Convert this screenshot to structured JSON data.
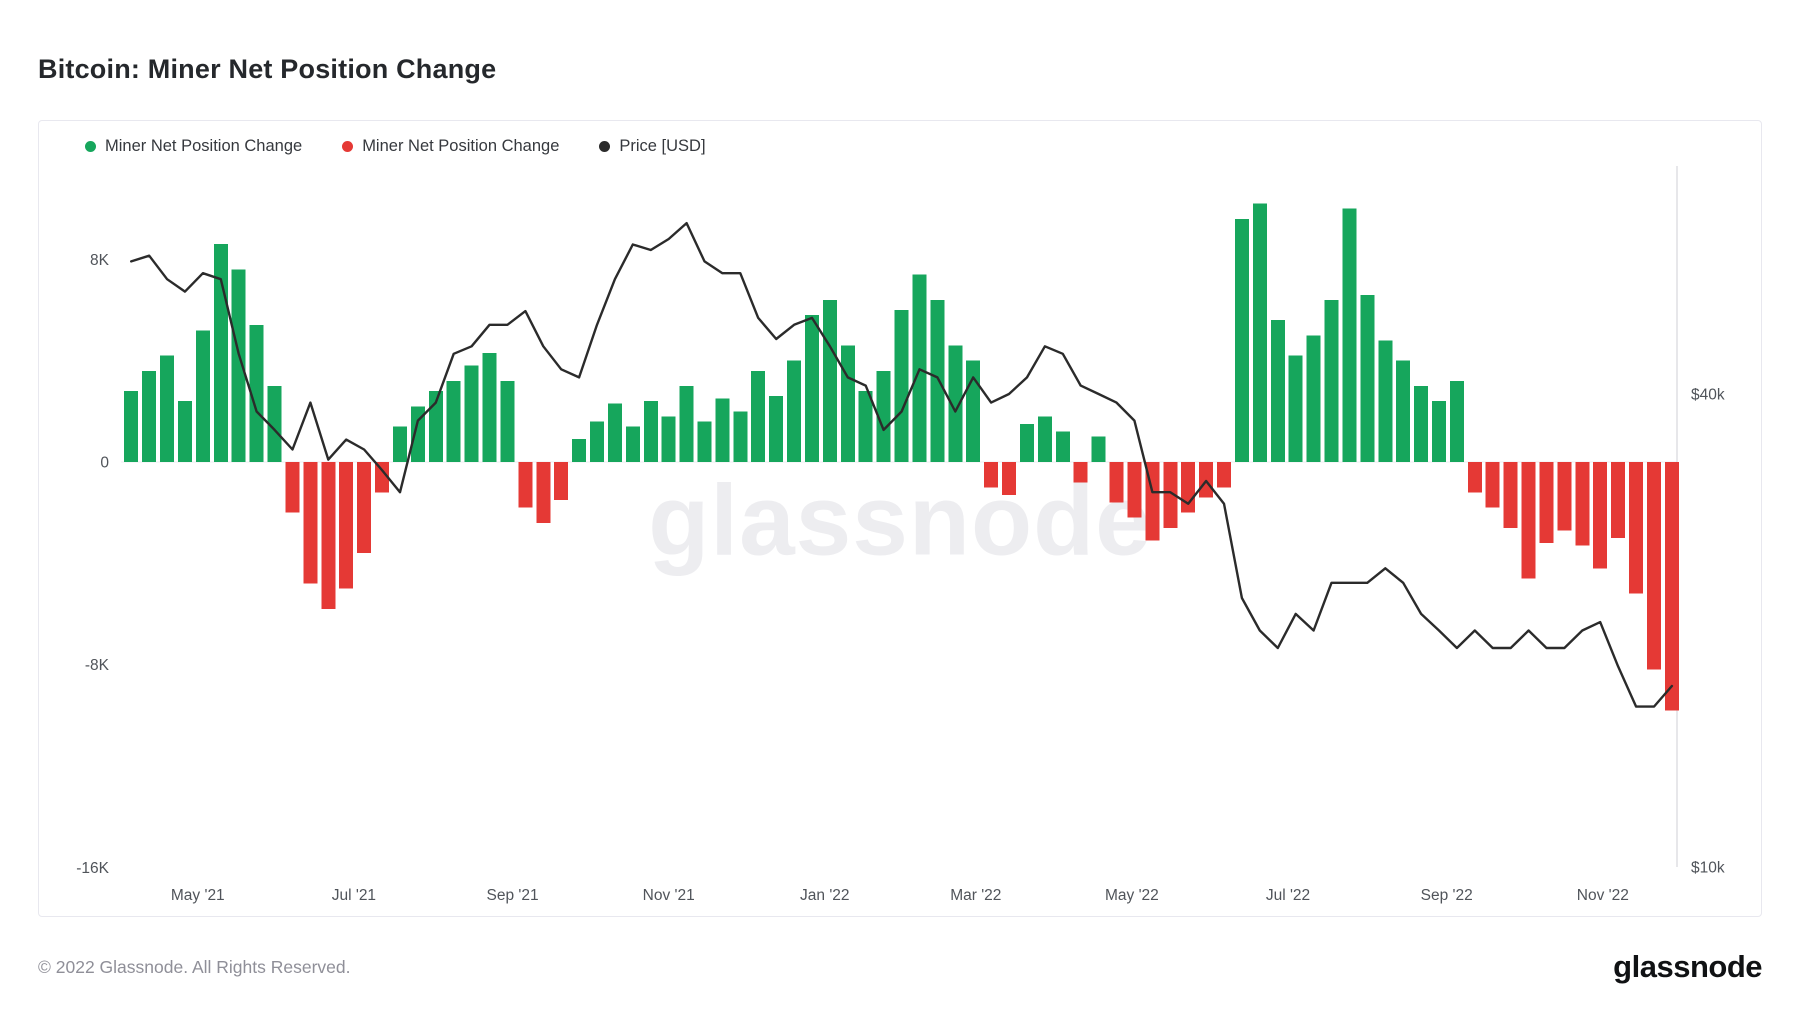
{
  "title": "Bitcoin: Miner Net Position Change",
  "watermark": "glassnode",
  "legend": {
    "items": [
      {
        "label": "Miner Net Position Change",
        "color": "#16a65c"
      },
      {
        "label": "Miner Net Position Change",
        "color": "#e53935"
      },
      {
        "label": "Price [USD]",
        "color": "#2b2b2b"
      }
    ]
  },
  "footer": {
    "copyright": "© 2022 Glassnode. All Rights Reserved.",
    "logo_text": "glassnode"
  },
  "chart_data": {
    "type": "combo",
    "title": "Bitcoin: Miner Net Position Change",
    "series": [
      {
        "name": "Miner Net Position Change",
        "type": "bar",
        "polarity": "positive",
        "color": "#16a65c"
      },
      {
        "name": "Miner Net Position Change",
        "type": "bar",
        "polarity": "negative",
        "color": "#e53935"
      },
      {
        "name": "Price [USD]",
        "type": "line",
        "axis": "right",
        "color": "#2b2b2b"
      }
    ],
    "x": {
      "start_date": "2021-04-05",
      "interval_days": 7,
      "domain_start": "2021-04-01",
      "domain_end": "2022-11-30"
    },
    "net_position_change_kbtc": [
      2.8,
      3.6,
      4.2,
      2.4,
      5.2,
      8.6,
      7.6,
      5.4,
      3.0,
      -2.0,
      -4.8,
      -5.8,
      -5.0,
      -3.6,
      -1.2,
      1.4,
      2.2,
      2.8,
      3.2,
      3.8,
      4.3,
      3.2,
      -1.8,
      -2.4,
      -1.5,
      0.9,
      1.6,
      2.3,
      1.4,
      2.4,
      1.8,
      3.0,
      1.6,
      2.5,
      2.0,
      3.6,
      2.6,
      4.0,
      5.8,
      6.4,
      4.6,
      2.8,
      3.6,
      6.0,
      7.4,
      6.4,
      4.6,
      4.0,
      -1.0,
      -1.3,
      1.5,
      1.8,
      1.2,
      -0.8,
      1.0,
      -1.6,
      -2.2,
      -3.1,
      -2.6,
      -2.0,
      -1.4,
      -1.0,
      9.6,
      10.2,
      5.6,
      4.2,
      5.0,
      6.4,
      10.0,
      6.6,
      4.8,
      4.0,
      3.0,
      2.4,
      3.2,
      -1.2,
      -1.8,
      -2.6,
      -4.6,
      -3.2,
      -2.7,
      -3.3,
      -4.2,
      -3.0,
      -5.2,
      -8.2,
      -9.8
    ],
    "price_usd_thousands": [
      59,
      60,
      56,
      54,
      57,
      56,
      45,
      38,
      36,
      34,
      39,
      33,
      35,
      34,
      32,
      30,
      37,
      39,
      45,
      46,
      49,
      49,
      51,
      46,
      43,
      42,
      49,
      56,
      62,
      61,
      63,
      66,
      59,
      57,
      57,
      50,
      47,
      49,
      50,
      46,
      42,
      41,
      36,
      38,
      43,
      42,
      38,
      42,
      39,
      40,
      42,
      46,
      45,
      41,
      40,
      39,
      37,
      30,
      30,
      29,
      31,
      29,
      22,
      20,
      19,
      21,
      20,
      23,
      23,
      23,
      24,
      23,
      21,
      20,
      19,
      20,
      19,
      19,
      20,
      19,
      19,
      20,
      20.5,
      18,
      16,
      16,
      17
    ],
    "left_axis": {
      "units": "BTC (thousands)",
      "scale": "linear",
      "range": [
        -16.5,
        10.5
      ],
      "ticks": [
        {
          "label": "8K",
          "value": 8
        },
        {
          "label": "0",
          "value": 0
        },
        {
          "label": "-8K",
          "value": -8
        },
        {
          "label": "-16K",
          "value": -16
        }
      ]
    },
    "right_axis": {
      "units": "USD (thousands)",
      "scale": "log",
      "ticks": [
        {
          "label": "$40k",
          "value": 40
        },
        {
          "label": "$10k",
          "value": 10
        }
      ]
    },
    "x_ticks": [
      {
        "label": "May '21",
        "date": "2021-05-01"
      },
      {
        "label": "Jul '21",
        "date": "2021-07-01"
      },
      {
        "label": "Sep '21",
        "date": "2021-09-01"
      },
      {
        "label": "Nov '21",
        "date": "2021-11-01"
      },
      {
        "label": "Jan '22",
        "date": "2022-01-01"
      },
      {
        "label": "Mar '22",
        "date": "2022-03-01"
      },
      {
        "label": "May '22",
        "date": "2022-05-01"
      },
      {
        "label": "Jul '22",
        "date": "2022-07-01"
      },
      {
        "label": "Sep '22",
        "date": "2022-09-01"
      },
      {
        "label": "Nov '22",
        "date": "2022-11-01"
      }
    ],
    "grid": false,
    "legend_position": "top-left"
  }
}
